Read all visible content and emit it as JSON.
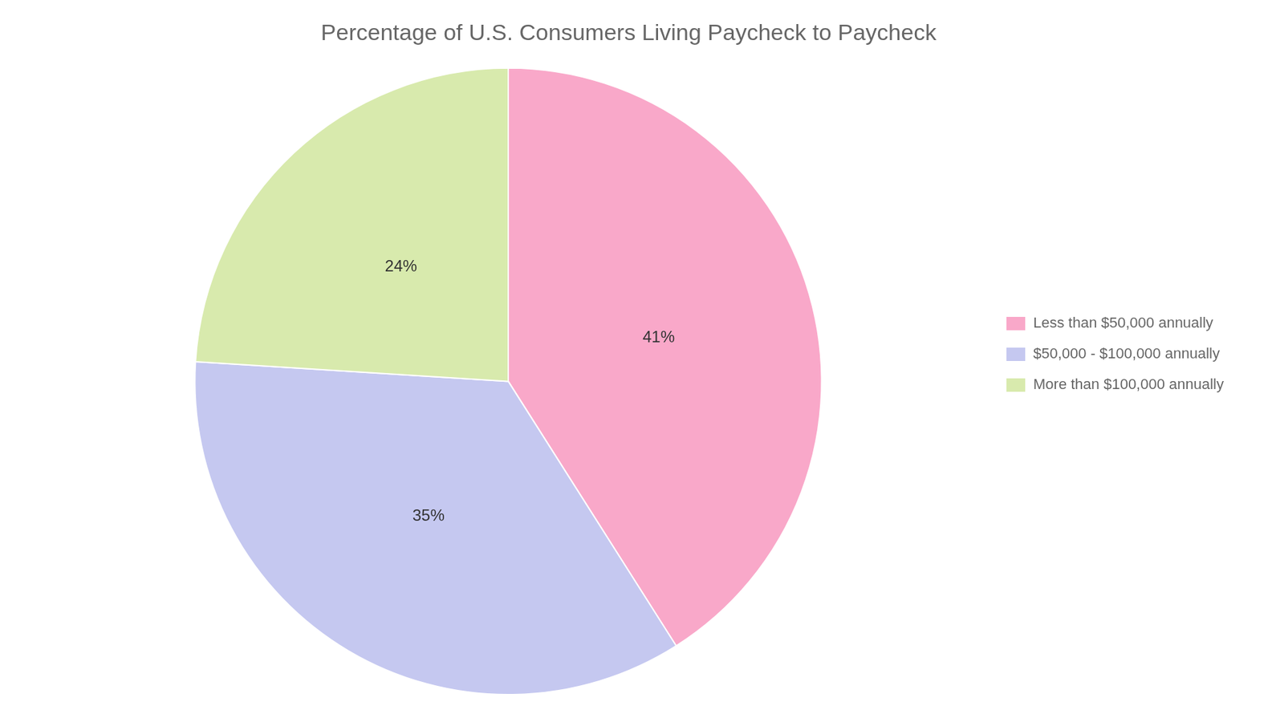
{
  "chart_data": {
    "type": "pie",
    "title": "Percentage of U.S. Consumers Living Paycheck to Paycheck",
    "categories": [
      "Less than $50,000 annually",
      "$50,000 - $100,000 annually",
      "More than $100,000 annually"
    ],
    "values": [
      41,
      35,
      24
    ],
    "value_labels": [
      "41%",
      "35%",
      "24%"
    ],
    "colors": [
      "#F9A8C9",
      "#C5C8F0",
      "#D8EAAD"
    ],
    "data_labels": true,
    "legend": "right"
  }
}
